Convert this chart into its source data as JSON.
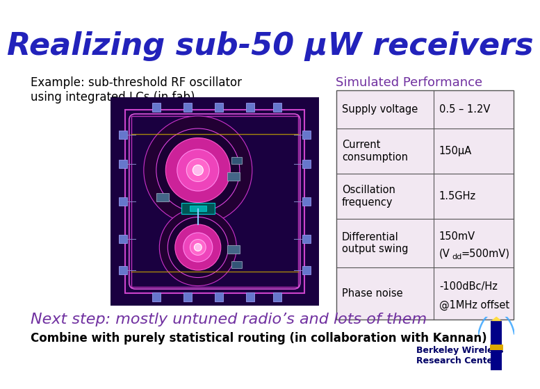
{
  "title": "Realizing sub-50 μW receivers",
  "title_color": "#2222bb",
  "title_fontsize": 32,
  "bg_color": "#ffffff",
  "example_text": "Example: sub-threshold RF oscillator\nusing integrated LCs (in fab)",
  "example_fontsize": 12,
  "example_color": "#000000",
  "table_title": "Simulated Performance",
  "table_title_color": "#7030a0",
  "table_title_fontsize": 13,
  "table_bg": "#f2e8f2",
  "table_border": "#555555",
  "table_rows": [
    [
      "Supply voltage",
      "0.5 – 1.2V"
    ],
    [
      "Current\nconsumption",
      "150μA"
    ],
    [
      "Oscillation\nfrequency",
      "1.5GHz"
    ],
    [
      "Differential\noutput swing",
      "150mV\n(Vdd=500mV)"
    ],
    [
      "Phase noise",
      "-100dBc/Hz\n@1MHz offset"
    ]
  ],
  "next_step_text": "Next step: mostly untuned radio’s and lots of them",
  "next_step_color": "#7030a0",
  "next_step_fontsize": 16,
  "combine_text": "Combine with purely statistical routing (in collaboration with Kannan)",
  "combine_color": "#000000",
  "combine_fontsize": 12,
  "bwrc_text1": "Berkeley Wireless",
  "bwrc_text2": "Research Center",
  "bwrc_color": "#000066",
  "bwrc_fontsize": 9
}
